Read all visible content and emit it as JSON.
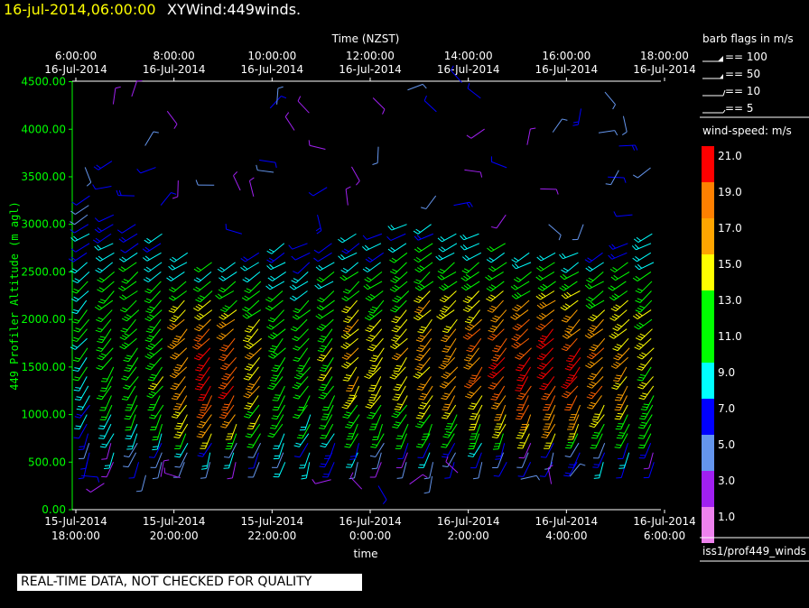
{
  "header": {
    "date": "16-jul-2014,06:00:00",
    "name": "XYWind:449winds."
  },
  "notice": "REAL-TIME DATA, NOT CHECKED FOR QUALITY",
  "colors": {
    "background": "#000000",
    "axis": "#ffffff",
    "ylabel": "#00ff00"
  },
  "legend": {
    "barb_title": "barb flags in m/s",
    "barb_items": [
      "== 100",
      "== 50",
      "== 10",
      "== 5"
    ],
    "speed_title": "wind-speed: m/s",
    "speed_labels": [
      "21.0",
      "19.0",
      "17.0",
      "15.0",
      "13.0",
      "11.0",
      "9.0",
      "7.0",
      "5.0",
      "3.0",
      "1.0"
    ],
    "speed_colors": [
      "#ff0000",
      "#ff8000",
      "#ffa500",
      "#ffff00",
      "#00ff00",
      "#00ff00",
      "#00ffff",
      "#0000ff",
      "#6495ed",
      "#a020f0",
      "#ee82ee"
    ],
    "source": "iss1/prof449_winds"
  },
  "chart_data": {
    "type": "scatter",
    "title": "16-jul-2014,06:00:00 XYWind:449winds.",
    "xlabel": "time",
    "x2label": "Time (NZST)",
    "ylabel": "449 Profiler Altitude (m agl)",
    "ylim": [
      0,
      4600
    ],
    "bottom_ticks": [
      [
        "15-Jul-2014",
        "18:00:00"
      ],
      [
        "15-Jul-2014",
        "20:00:00"
      ],
      [
        "15-Jul-2014",
        "22:00:00"
      ],
      [
        "16-Jul-2014",
        "0:00:00"
      ],
      [
        "16-Jul-2014",
        "2:00:00"
      ],
      [
        "16-Jul-2014",
        "4:00:00"
      ],
      [
        "16-Jul-2014",
        "6:00:00"
      ]
    ],
    "top_ticks": [
      [
        "6:00:00",
        "16-Jul-2014"
      ],
      [
        "8:00:00",
        "16-Jul-2014"
      ],
      [
        "10:00:00",
        "16-Jul-2014"
      ],
      [
        "12:00:00",
        "16-Jul-2014"
      ],
      [
        "14:00:00",
        "16-Jul-2014"
      ],
      [
        "16:00:00",
        "16-Jul-2014"
      ],
      [
        "18:00:00",
        "16-Jul-2014"
      ]
    ],
    "y_ticks": [
      "0.00",
      "500.00",
      "1000.00",
      "1500.00",
      "2000.00",
      "2500.00",
      "3000.00",
      "3500.00",
      "4000.00",
      "4500.00"
    ],
    "x_hours": [
      0,
      2,
      4,
      6,
      8,
      10,
      12
    ],
    "profile_hours": [
      0.25,
      0.75,
      1.25,
      1.75,
      2.25,
      2.75,
      3.25,
      3.75,
      4.25,
      4.75,
      5.25,
      5.75,
      6.25,
      6.75,
      7.25,
      7.75,
      8.25,
      8.75,
      9.25,
      9.75,
      10.25,
      10.75,
      11.25,
      11.75
    ],
    "profile_top_m": [
      3300,
      3100,
      3000,
      2900,
      2700,
      2600,
      2600,
      2700,
      2800,
      2800,
      2800,
      2900,
      2900,
      3000,
      3000,
      2900,
      2900,
      2800,
      2700,
      2700,
      2700,
      2700,
      2800,
      2900
    ],
    "profile_max_speed": [
      10,
      12,
      13,
      14,
      18,
      21,
      20,
      16,
      13,
      12,
      14,
      16,
      15,
      16,
      17,
      17,
      18,
      20,
      21,
      21,
      20,
      18,
      17,
      15
    ],
    "alt_step_m": 100,
    "alt_start_m": 500
  }
}
